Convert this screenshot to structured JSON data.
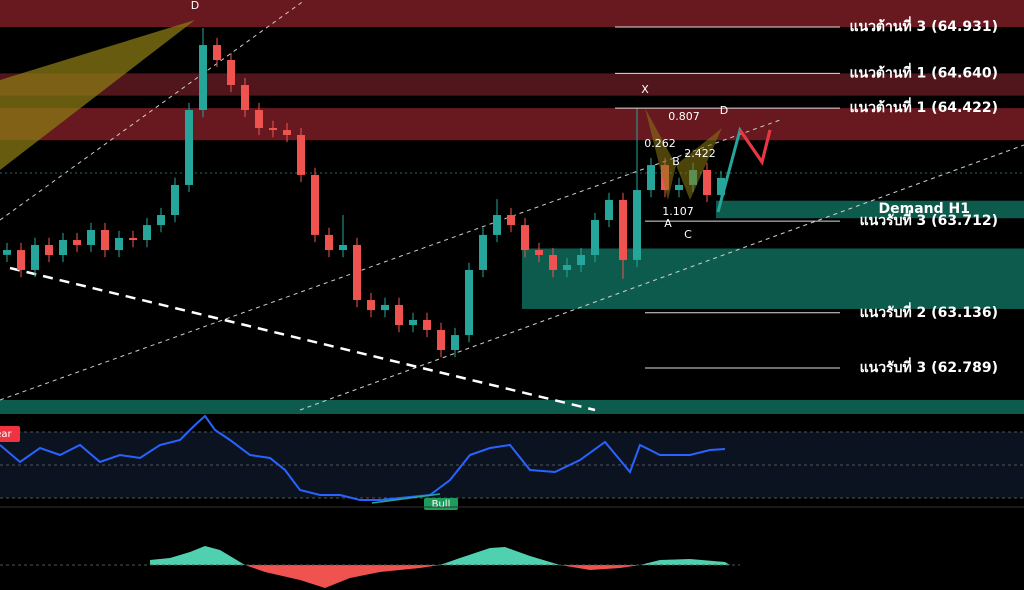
{
  "chart_data": {
    "type": "candlestick",
    "ylim": [
      62.588,
      65.101
    ],
    "candles": [
      [
        63.5,
        63.575,
        63.455,
        63.53
      ],
      [
        63.53,
        63.575,
        63.36,
        63.405
      ],
      [
        63.405,
        63.607,
        63.36,
        63.562
      ],
      [
        63.562,
        63.607,
        63.454,
        63.499
      ],
      [
        63.499,
        63.638,
        63.454,
        63.593
      ],
      [
        63.593,
        63.638,
        63.517,
        63.562
      ],
      [
        63.562,
        63.701,
        63.517,
        63.656
      ],
      [
        63.656,
        63.701,
        63.485,
        63.53
      ],
      [
        63.53,
        63.651,
        63.485,
        63.606
      ],
      [
        63.606,
        63.651,
        63.548,
        63.593
      ],
      [
        63.593,
        63.732,
        63.548,
        63.687
      ],
      [
        63.687,
        63.795,
        63.642,
        63.75
      ],
      [
        63.75,
        63.984,
        63.705,
        63.939
      ],
      [
        63.939,
        64.455,
        63.894,
        64.41
      ],
      [
        64.41,
        64.925,
        64.365,
        64.818
      ],
      [
        64.818,
        64.863,
        64.679,
        64.724
      ],
      [
        64.724,
        64.769,
        64.522,
        64.567
      ],
      [
        64.567,
        64.612,
        64.365,
        64.41
      ],
      [
        64.41,
        64.455,
        64.252,
        64.297
      ],
      [
        64.297,
        64.342,
        64.239,
        64.284
      ],
      [
        64.284,
        64.329,
        64.208,
        64.253
      ],
      [
        64.253,
        64.298,
        63.957,
        64.002
      ],
      [
        64.002,
        64.047,
        63.58,
        63.625
      ],
      [
        63.625,
        63.67,
        63.485,
        63.53
      ],
      [
        63.53,
        63.75,
        63.485,
        63.562
      ],
      [
        63.562,
        63.607,
        63.171,
        63.216
      ],
      [
        63.216,
        63.261,
        63.108,
        63.153
      ],
      [
        63.153,
        63.23,
        63.108,
        63.185
      ],
      [
        63.185,
        63.23,
        63.014,
        63.059
      ],
      [
        63.059,
        63.136,
        63.014,
        63.091
      ],
      [
        63.091,
        63.136,
        62.983,
        63.028
      ],
      [
        63.028,
        63.073,
        62.857,
        62.902
      ],
      [
        62.902,
        63.041,
        62.857,
        62.996
      ],
      [
        62.996,
        63.45,
        62.951,
        63.405
      ],
      [
        63.405,
        63.67,
        63.36,
        63.625
      ],
      [
        63.625,
        63.85,
        63.58,
        63.75
      ],
      [
        63.75,
        63.795,
        63.642,
        63.687
      ],
      [
        63.687,
        63.732,
        63.485,
        63.53
      ],
      [
        63.53,
        63.575,
        63.454,
        63.499
      ],
      [
        63.499,
        63.544,
        63.36,
        63.405
      ],
      [
        63.405,
        63.481,
        63.36,
        63.436
      ],
      [
        63.436,
        63.544,
        63.391,
        63.499
      ],
      [
        63.499,
        63.764,
        63.454,
        63.719
      ],
      [
        63.719,
        63.89,
        63.674,
        63.845
      ],
      [
        63.845,
        63.89,
        63.35,
        63.468
      ],
      [
        63.468,
        64.42,
        63.423,
        63.907
      ],
      [
        63.907,
        64.109,
        63.862,
        64.064
      ],
      [
        64.064,
        64.109,
        63.862,
        63.907
      ],
      [
        63.907,
        63.984,
        63.862,
        63.939
      ],
      [
        63.939,
        64.078,
        63.894,
        64.033
      ],
      [
        64.033,
        64.078,
        63.831,
        63.876
      ],
      [
        63.876,
        64.028,
        63.831,
        63.983
      ]
    ],
    "zones": [
      {
        "from": 64.931,
        "to": 65.101,
        "color": "#7a1c24"
      },
      {
        "from": 64.5,
        "to": 64.64,
        "color": "#5e1a20"
      },
      {
        "from": 64.22,
        "to": 64.422,
        "color": "#7a1c24"
      },
      {
        "from": 63.73,
        "to": 63.84,
        "color": "#0f6b5a"
      },
      {
        "from": 63.16,
        "to": 63.54,
        "color": "#0f6b5a"
      },
      {
        "from": 62.5,
        "to": 62.588,
        "color": "#0f6b5a"
      }
    ],
    "levels": [
      {
        "value": 64.931,
        "label": "แนวต้านที่ 3 (64.931)"
      },
      {
        "value": 64.64,
        "label": "แนวต้านที่ 1 (64.640)"
      },
      {
        "value": 64.422,
        "label": "แนวต้านที่ 1 (64.422)"
      },
      {
        "value": 63.712,
        "label": "แนวรับที่ 3 (63.712)"
      },
      {
        "value": 63.136,
        "label": "แนวรับที่ 2 (63.136)"
      },
      {
        "value": 62.789,
        "label": "แนวรับที่ 3 (62.789)"
      }
    ],
    "demand_label": "Demand H1",
    "pattern_labels": {
      "x": "X",
      "a": "A",
      "b": "B",
      "c": "C",
      "d": "D",
      "d_left": "D"
    },
    "ratios": [
      "0.807",
      "0.262",
      "2.422",
      "1.107"
    ],
    "bear_label": "Bear",
    "bull_label": "Bull",
    "up_color": "#26a69a",
    "down_color": "#ef5350"
  }
}
